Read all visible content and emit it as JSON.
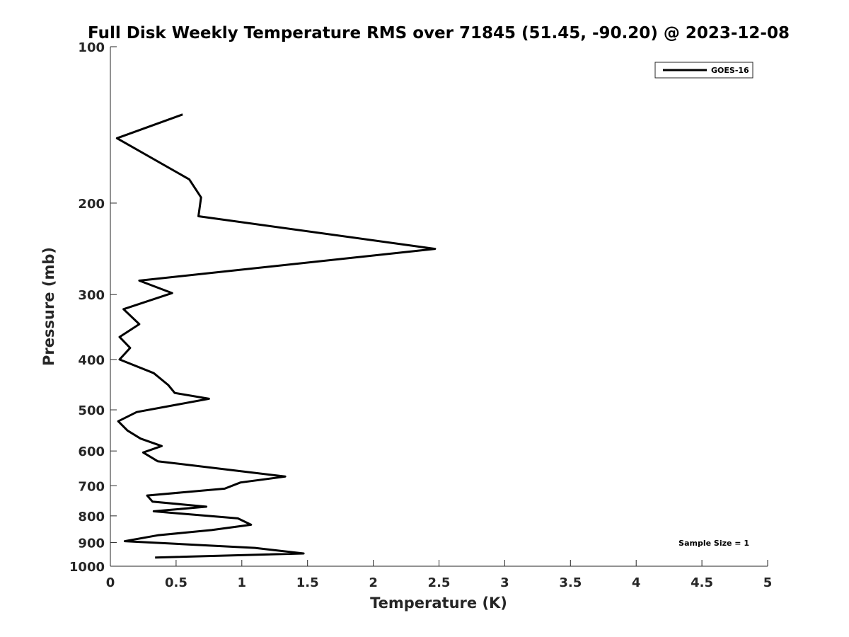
{
  "chart_data": {
    "type": "line",
    "title": "Full Disk Weekly Temperature RMS over 71845 (51.45, -90.20) @ 2023-12-08",
    "xlabel": "Temperature (K)",
    "ylabel": "Pressure (mb)",
    "xlim": [
      0,
      5
    ],
    "ylim": [
      100,
      1000
    ],
    "y_scale": "log",
    "y_reversed": true,
    "x_ticks": [
      0,
      0.5,
      1,
      1.5,
      2,
      2.5,
      3,
      3.5,
      4,
      4.5,
      5
    ],
    "x_tick_labels": [
      "0",
      "0.5",
      "1",
      "1.5",
      "2",
      "2.5",
      "3",
      "3.5",
      "4",
      "4.5",
      "5"
    ],
    "y_ticks": [
      100,
      200,
      300,
      400,
      500,
      600,
      700,
      800,
      900,
      1000
    ],
    "y_tick_labels": [
      "100",
      "200",
      "300",
      "400",
      "500",
      "600",
      "700",
      "800",
      "900",
      "1000"
    ],
    "grid": false,
    "legend_position": "top-right",
    "annotation": "Sample Size = 1",
    "series": [
      {
        "name": "GOES-16",
        "color": "#000000",
        "points": [
          [
            0.55,
            135
          ],
          [
            0.05,
            150
          ],
          [
            0.6,
            180
          ],
          [
            0.69,
            195
          ],
          [
            0.67,
            212
          ],
          [
            2.47,
            245
          ],
          [
            0.22,
            282
          ],
          [
            0.47,
            298
          ],
          [
            0.1,
            320
          ],
          [
            0.22,
            342
          ],
          [
            0.07,
            362
          ],
          [
            0.15,
            380
          ],
          [
            0.07,
            400
          ],
          [
            0.33,
            425
          ],
          [
            0.44,
            448
          ],
          [
            0.49,
            464
          ],
          [
            0.75,
            476
          ],
          [
            0.2,
            505
          ],
          [
            0.06,
            526
          ],
          [
            0.13,
            548
          ],
          [
            0.23,
            568
          ],
          [
            0.39,
            587
          ],
          [
            0.25,
            604
          ],
          [
            0.36,
            628
          ],
          [
            0.92,
            653
          ],
          [
            1.33,
            672
          ],
          [
            0.99,
            690
          ],
          [
            0.87,
            709
          ],
          [
            0.28,
            731
          ],
          [
            0.32,
            751
          ],
          [
            0.73,
            768
          ],
          [
            0.33,
            784
          ],
          [
            0.97,
            809
          ],
          [
            1.07,
            832
          ],
          [
            0.77,
            852
          ],
          [
            0.36,
            872
          ],
          [
            0.11,
            895
          ],
          [
            1.1,
            922
          ],
          [
            1.47,
            945
          ],
          [
            0.34,
            962
          ]
        ]
      }
    ]
  }
}
